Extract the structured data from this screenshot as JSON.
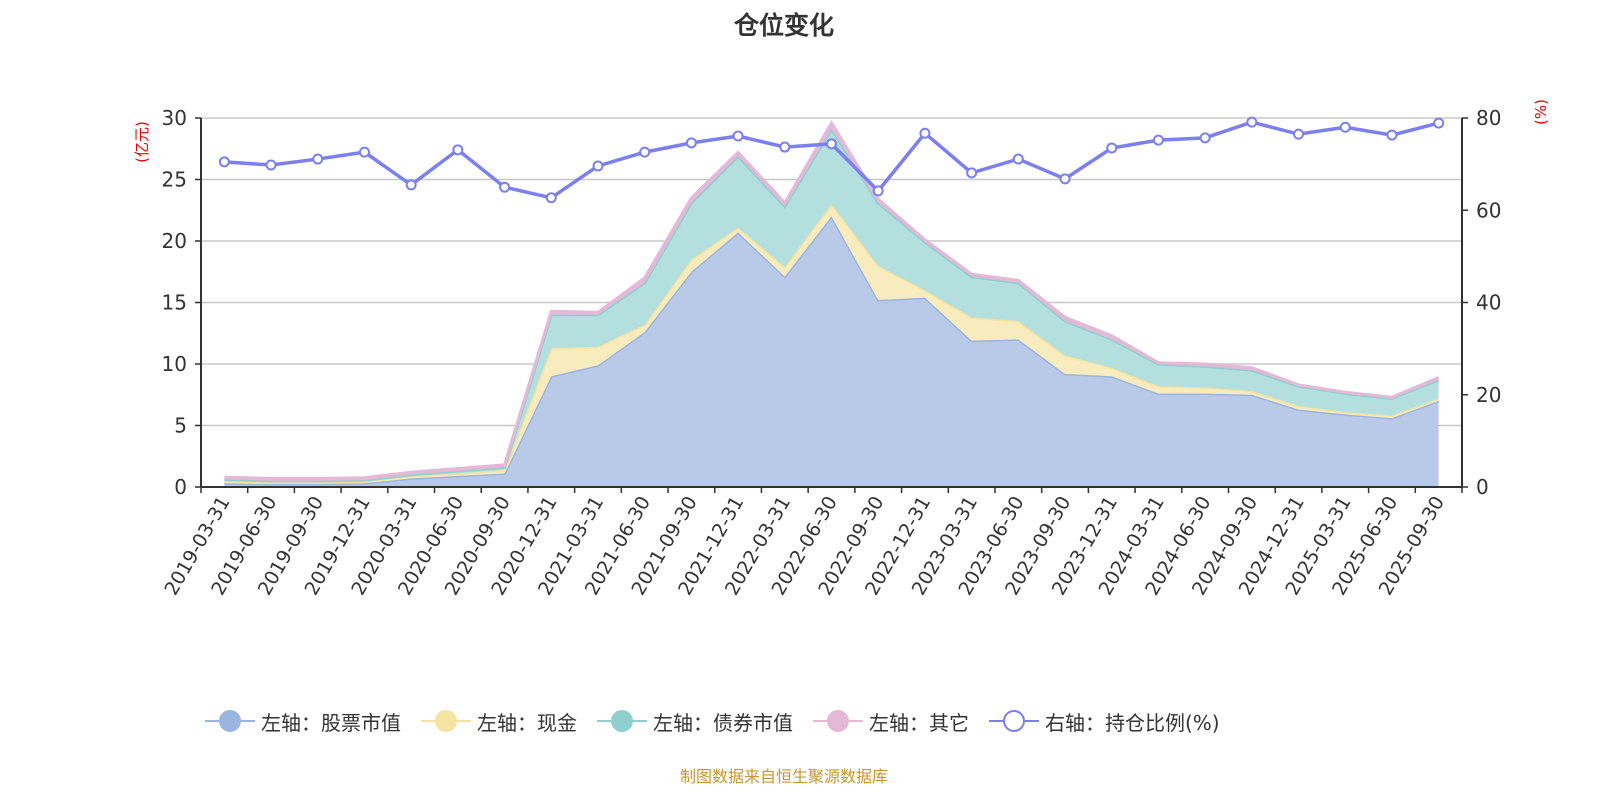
{
  "chart_data": {
    "type": "area",
    "title": "仓位变化",
    "ylabel_left": "(亿元)",
    "ylabel_right": "(%)",
    "ylim_left": [
      0,
      30
    ],
    "yticks_left": [
      0,
      5,
      10,
      15,
      20,
      25,
      30
    ],
    "ylim_right": [
      0,
      80
    ],
    "yticks_right": [
      0,
      20,
      40,
      60,
      80
    ],
    "grid": true,
    "legend_position": "bottom",
    "categories": [
      "2019-03-31",
      "2019-06-30",
      "2019-09-30",
      "2019-12-31",
      "2020-03-31",
      "2020-06-30",
      "2020-09-30",
      "2020-12-31",
      "2021-03-31",
      "2021-06-30",
      "2021-09-30",
      "2021-12-31",
      "2022-03-31",
      "2022-06-30",
      "2022-09-30",
      "2022-12-31",
      "2023-03-31",
      "2023-06-30",
      "2023-09-30",
      "2023-12-31",
      "2024-03-31",
      "2024-06-30",
      "2024-09-30",
      "2024-12-31",
      "2025-03-31",
      "2025-06-30",
      "2025-09-30"
    ],
    "series": [
      {
        "name": "左轴：股票市值",
        "axis": "left",
        "stacked": true,
        "color": "#9ab5e0",
        "fill": "#b8cae8",
        "values": [
          0.3,
          0.25,
          0.25,
          0.3,
          0.7,
          0.9,
          1.1,
          9.0,
          9.9,
          12.6,
          17.5,
          20.7,
          17.1,
          22.0,
          15.2,
          15.4,
          11.9,
          12.0,
          9.2,
          9.0,
          7.6,
          7.6,
          7.5,
          6.3,
          5.9,
          5.6,
          7.0
        ]
      },
      {
        "name": "左轴：现金",
        "axis": "left",
        "stacked": true,
        "color": "#f5e3a0",
        "fill": "#f8ebbd",
        "values": [
          0.2,
          0.15,
          0.15,
          0.15,
          0.2,
          0.2,
          0.3,
          2.3,
          1.5,
          0.6,
          1.0,
          0.4,
          0.8,
          1.0,
          2.8,
          0.6,
          1.9,
          1.5,
          1.5,
          0.7,
          0.6,
          0.5,
          0.3,
          0.3,
          0.2,
          0.2,
          0.2
        ]
      },
      {
        "name": "左轴：债券市值",
        "axis": "left",
        "stacked": true,
        "color": "#8fd0cf",
        "fill": "#b3dfdf",
        "values": [
          0.1,
          0.1,
          0.1,
          0.1,
          0.1,
          0.2,
          0.2,
          2.7,
          2.6,
          3.4,
          4.6,
          5.8,
          4.9,
          6.1,
          5.1,
          3.9,
          3.3,
          3.1,
          2.8,
          2.3,
          1.8,
          1.7,
          1.7,
          1.6,
          1.5,
          1.4,
          1.5
        ]
      },
      {
        "name": "左轴：其它",
        "axis": "left",
        "stacked": true,
        "color": "#e6b8d8",
        "fill": "#e6b8d8",
        "values": [
          0.2,
          0.2,
          0.2,
          0.2,
          0.2,
          0.2,
          0.2,
          0.3,
          0.2,
          0.4,
          0.4,
          0.3,
          0.3,
          0.5,
          0.3,
          0.2,
          0.2,
          0.2,
          0.3,
          0.3,
          0.1,
          0.2,
          0.2,
          0.1,
          0.1,
          0.1,
          0.2
        ]
      },
      {
        "name": "右轴：持仓比例(%)",
        "axis": "right",
        "type": "line",
        "color": "#7b7ff0",
        "values": [
          70.5,
          69.8,
          71.1,
          72.6,
          65.5,
          73.1,
          65.0,
          62.7,
          69.6,
          72.6,
          74.6,
          76.1,
          73.7,
          74.4,
          64.2,
          76.7,
          68.1,
          71.1,
          66.8,
          73.5,
          75.2,
          75.7,
          79.1,
          76.5,
          78.0,
          76.3,
          78.9
        ]
      }
    ]
  },
  "source": "制图数据来自恒生聚源数据库"
}
